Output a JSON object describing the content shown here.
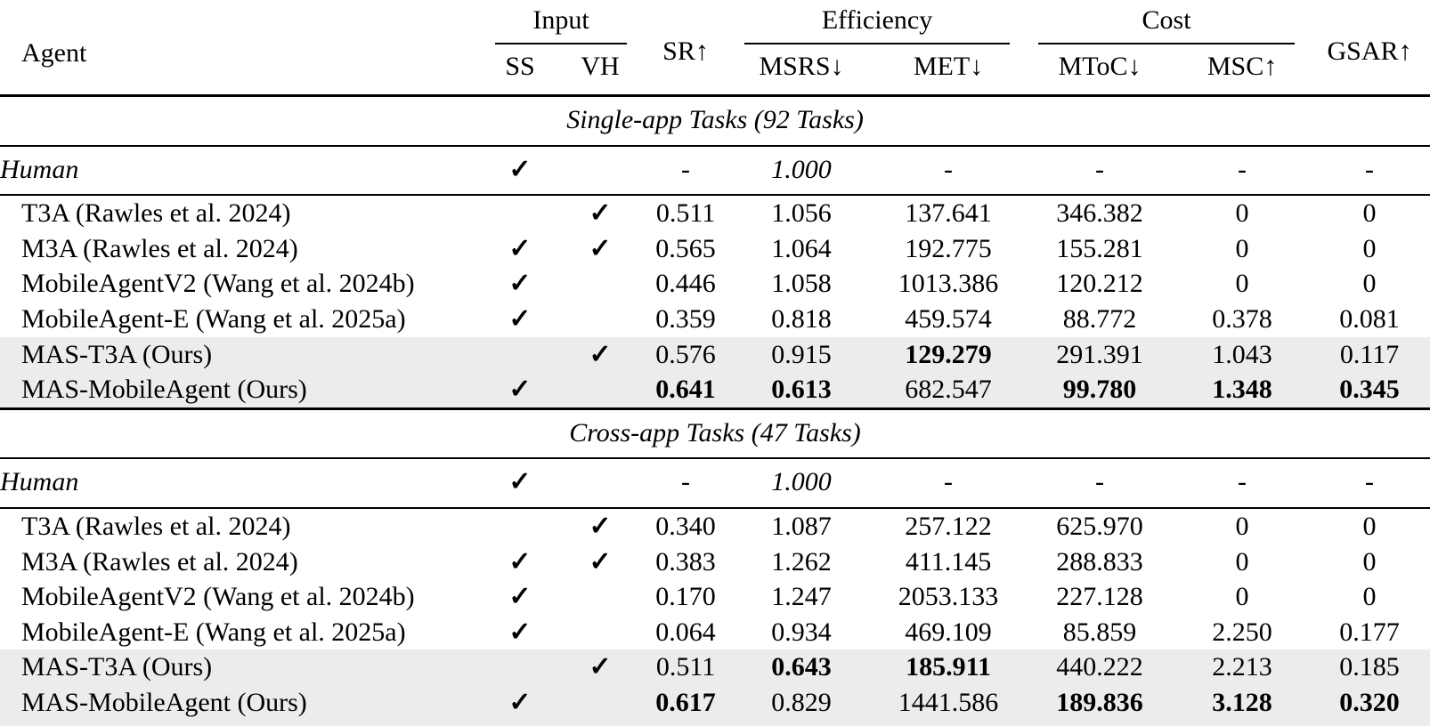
{
  "marks": {
    "check": "✓"
  },
  "table": {
    "top_headers": {
      "agent": "Agent",
      "sr": "SR↑",
      "gsar": "GSAR↑"
    },
    "groups": [
      {
        "label": "Input",
        "sub": [
          "SS",
          "VH"
        ]
      },
      {
        "label": "Efficiency",
        "sub": [
          "MSRS↓",
          "MET↓"
        ]
      },
      {
        "label": "Cost",
        "sub": [
          "MToC↓",
          "MSC↑"
        ]
      }
    ],
    "sections": [
      {
        "title": "Single-app Tasks (92 Tasks)",
        "rows": [
          {
            "agent": "Human",
            "italic": true,
            "rule_below": true,
            "tall": true,
            "highlight": false,
            "ss": true,
            "vh": false,
            "values": {
              "sr": "-",
              "msrs": "1.000",
              "met": "-",
              "mtoc": "-",
              "msc": "-",
              "gsar": "-"
            },
            "bold": []
          },
          {
            "agent": "T3A (Rawles et al. 2024)",
            "italic": false,
            "highlight": false,
            "ss": false,
            "vh": true,
            "values": {
              "sr": "0.511",
              "msrs": "1.056",
              "met": "137.641",
              "mtoc": "346.382",
              "msc": "0",
              "gsar": "0"
            },
            "bold": []
          },
          {
            "agent": "M3A (Rawles et al. 2024)",
            "italic": false,
            "highlight": false,
            "ss": true,
            "vh": true,
            "values": {
              "sr": "0.565",
              "msrs": "1.064",
              "met": "192.775",
              "mtoc": "155.281",
              "msc": "0",
              "gsar": "0"
            },
            "bold": []
          },
          {
            "agent": "MobileAgentV2 (Wang et al. 2024b)",
            "italic": false,
            "highlight": false,
            "ss": true,
            "vh": false,
            "values": {
              "sr": "0.446",
              "msrs": "1.058",
              "met": "1013.386",
              "mtoc": "120.212",
              "msc": "0",
              "gsar": "0"
            },
            "bold": []
          },
          {
            "agent": "MobileAgent-E (Wang et al. 2025a)",
            "italic": false,
            "highlight": false,
            "ss": true,
            "vh": false,
            "values": {
              "sr": "0.359",
              "msrs": "0.818",
              "met": "459.574",
              "mtoc": "88.772",
              "msc": "0.378",
              "gsar": "0.081"
            },
            "bold": []
          },
          {
            "agent": "MAS-T3A (Ours)",
            "italic": false,
            "highlight": true,
            "ss": false,
            "vh": true,
            "values": {
              "sr": "0.576",
              "msrs": "0.915",
              "met": "129.279",
              "mtoc": "291.391",
              "msc": "1.043",
              "gsar": "0.117"
            },
            "bold": [
              "met"
            ]
          },
          {
            "agent": "MAS-MobileAgent (Ours)",
            "italic": false,
            "highlight": true,
            "ss": true,
            "vh": false,
            "values": {
              "sr": "0.641",
              "msrs": "0.613",
              "met": "682.547",
              "mtoc": "99.780",
              "msc": "1.348",
              "gsar": "0.345"
            },
            "bold": [
              "sr",
              "msrs",
              "mtoc",
              "msc",
              "gsar"
            ]
          }
        ]
      },
      {
        "title": "Cross-app Tasks (47 Tasks)",
        "rows": [
          {
            "agent": "Human",
            "italic": true,
            "rule_below": true,
            "tall": true,
            "highlight": false,
            "ss": true,
            "vh": false,
            "values": {
              "sr": "-",
              "msrs": "1.000",
              "met": "-",
              "mtoc": "-",
              "msc": "-",
              "gsar": "-"
            },
            "bold": []
          },
          {
            "agent": "T3A (Rawles et al. 2024)",
            "italic": false,
            "highlight": false,
            "ss": false,
            "vh": true,
            "values": {
              "sr": "0.340",
              "msrs": "1.087",
              "met": "257.122",
              "mtoc": "625.970",
              "msc": "0",
              "gsar": "0"
            },
            "bold": []
          },
          {
            "agent": "M3A (Rawles et al. 2024)",
            "italic": false,
            "highlight": false,
            "ss": true,
            "vh": true,
            "values": {
              "sr": "0.383",
              "msrs": "1.262",
              "met": "411.145",
              "mtoc": "288.833",
              "msc": "0",
              "gsar": "0"
            },
            "bold": []
          },
          {
            "agent": "MobileAgentV2 (Wang et al. 2024b)",
            "italic": false,
            "highlight": false,
            "ss": true,
            "vh": false,
            "values": {
              "sr": "0.170",
              "msrs": "1.247",
              "met": "2053.133",
              "mtoc": "227.128",
              "msc": "0",
              "gsar": "0"
            },
            "bold": []
          },
          {
            "agent": "MobileAgent-E (Wang et al. 2025a)",
            "italic": false,
            "highlight": false,
            "ss": true,
            "vh": false,
            "values": {
              "sr": "0.064",
              "msrs": "0.934",
              "met": "469.109",
              "mtoc": "85.859",
              "msc": "2.250",
              "gsar": "0.177"
            },
            "bold": []
          },
          {
            "agent": "MAS-T3A (Ours)",
            "italic": false,
            "highlight": true,
            "ss": false,
            "vh": true,
            "values": {
              "sr": "0.511",
              "msrs": "0.643",
              "met": "185.911",
              "mtoc": "440.222",
              "msc": "2.213",
              "gsar": "0.185"
            },
            "bold": [
              "msrs",
              "met"
            ]
          },
          {
            "agent": "MAS-MobileAgent (Ours)",
            "italic": false,
            "highlight": true,
            "ss": true,
            "vh": false,
            "values": {
              "sr": "0.617",
              "msrs": "0.829",
              "met": "1441.586",
              "mtoc": "189.836",
              "msc": "3.128",
              "gsar": "0.320"
            },
            "bold": [
              "sr",
              "mtoc",
              "msc",
              "gsar"
            ]
          }
        ]
      }
    ]
  }
}
